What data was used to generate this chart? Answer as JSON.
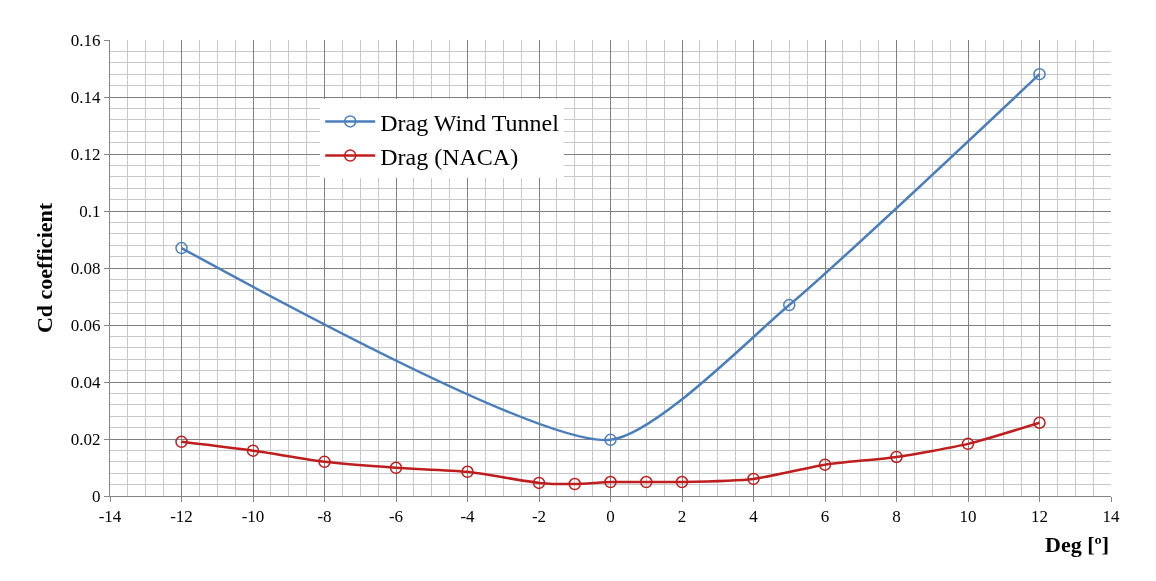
{
  "chart_data": {
    "type": "line",
    "xlabel": "Deg [º]",
    "ylabel": "Cd coefficient",
    "xlim": [
      -14,
      14
    ],
    "xticks": [
      -14,
      -12,
      -10,
      -8,
      -6,
      -4,
      -2,
      0,
      2,
      4,
      6,
      8,
      10,
      12,
      14
    ],
    "ylim": [
      0,
      0.16
    ],
    "yticks": [
      0,
      0.02,
      0.04,
      0.06,
      0.08,
      0.1,
      0.12,
      0.14,
      0.16
    ],
    "grid": true,
    "legend": "top left",
    "marker": "circle",
    "line_style": "solid",
    "series": [
      {
        "name": "Drag Wind Tunnel",
        "color": "#4a7ebb",
        "x": [
          -12,
          0,
          5,
          12
        ],
        "values": [
          0.087,
          0.0197,
          0.067,
          0.148
        ]
      },
      {
        "name": "Drag (NACA)",
        "color": "#be1e1e",
        "x": [
          -12,
          -10,
          -8,
          -6,
          -4,
          -2,
          -1,
          0,
          1,
          2,
          4,
          6,
          8,
          10,
          12
        ],
        "values": [
          0.019,
          0.0159,
          0.012,
          0.0099,
          0.0085,
          0.0046,
          0.0042,
          0.0049,
          0.0049,
          0.0049,
          0.006,
          0.011,
          0.0137,
          0.0183,
          0.0257
        ]
      }
    ]
  }
}
